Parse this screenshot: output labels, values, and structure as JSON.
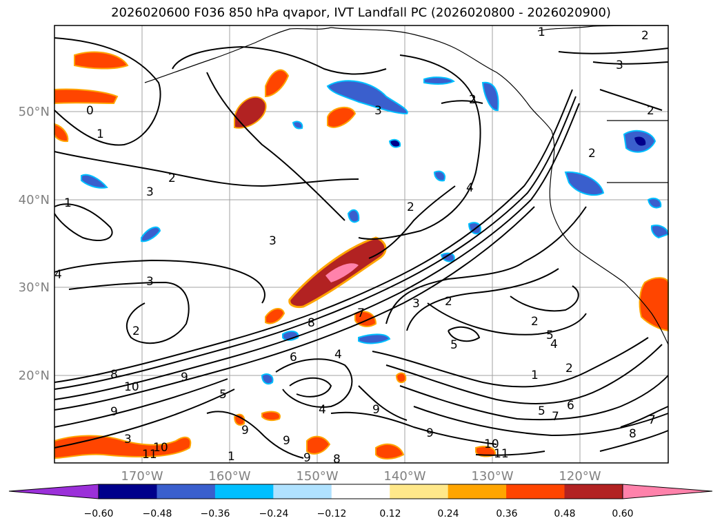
{
  "title": "2026020600 F036 850 hPa qvapor, IVT Landfall PC (2026020800 - 2026020900)",
  "map": {
    "latitude_labels": [
      "50°N",
      "40°N",
      "30°N",
      "20°N"
    ],
    "longitude_labels": [
      "170°W",
      "160°W",
      "150°W",
      "140°W",
      "130°W",
      "120°W"
    ],
    "contour_labels": [
      "0",
      "1",
      "1",
      "2",
      "3",
      "3",
      "2",
      "4",
      "3",
      "3",
      "3",
      "2",
      "8",
      "10",
      "9",
      "9",
      "10",
      "11",
      "9",
      "9",
      "9",
      "8",
      "8",
      "5",
      "6",
      "4",
      "2",
      "3",
      "2",
      "5",
      "5",
      "4",
      "2",
      "1",
      "2",
      "5",
      "7",
      "6",
      "8",
      "3",
      "2",
      "2",
      "4",
      "1",
      "7",
      "4",
      "9",
      "9",
      "10",
      "11",
      "1",
      "2",
      "7"
    ]
  },
  "colorbar": {
    "ticks": [
      "−0.60",
      "−0.48",
      "−0.36",
      "−0.24",
      "−0.12",
      "0.12",
      "0.24",
      "0.36",
      "0.48",
      "0.60"
    ],
    "colors": [
      "#9b30d9",
      "#00008b",
      "#3a5fcd",
      "#00bfff",
      "#b0e2ff",
      "#ffffff",
      "#ffe88a",
      "#ffa500",
      "#ff4500",
      "#b22222",
      "#ff82ab",
      "#ff82ab"
    ]
  }
}
